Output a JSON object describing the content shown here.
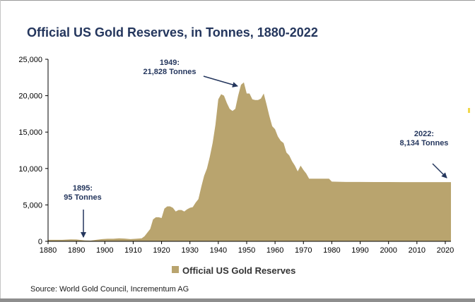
{
  "chart_data": {
    "type": "area",
    "title": "Official US Gold Reserves, in Tonnes, 1880-2022",
    "xlabel": "",
    "ylabel": "",
    "xlim": [
      1880,
      2022
    ],
    "ylim": [
      0,
      25000
    ],
    "x_ticks": [
      1880,
      1890,
      1900,
      1910,
      1920,
      1930,
      1940,
      1950,
      1960,
      1970,
      1980,
      1990,
      2000,
      2010,
      2020
    ],
    "y_ticks": [
      0,
      5000,
      10000,
      15000,
      20000,
      25000
    ],
    "y_tick_labels": [
      "0",
      "5,000",
      "10,000",
      "15,000",
      "20,000",
      "25,000"
    ],
    "grid": false,
    "legend_position": "bottom-center",
    "series": [
      {
        "name": "Official US Gold Reserves",
        "color": "#b9a46e",
        "x": [
          1880,
          1885,
          1888,
          1890,
          1893,
          1895,
          1897,
          1899,
          1901,
          1903,
          1905,
          1907,
          1909,
          1911,
          1913,
          1914,
          1915,
          1916,
          1917,
          1918,
          1919,
          1920,
          1921,
          1922,
          1923,
          1924,
          1925,
          1926,
          1927,
          1928,
          1929,
          1930,
          1931,
          1932,
          1933,
          1934,
          1935,
          1936,
          1937,
          1938,
          1939,
          1940,
          1941,
          1942,
          1943,
          1944,
          1945,
          1946,
          1947,
          1948,
          1949,
          1950,
          1951,
          1952,
          1953,
          1954,
          1955,
          1956,
          1957,
          1958,
          1959,
          1960,
          1961,
          1962,
          1963,
          1964,
          1965,
          1966,
          1967,
          1968,
          1969,
          1970,
          1971,
          1972,
          1975,
          1978,
          1979,
          1980,
          1985,
          1990,
          1995,
          2000,
          2005,
          2010,
          2015,
          2022
        ],
        "values": [
          200,
          200,
          270,
          250,
          130,
          95,
          200,
          300,
          350,
          350,
          420,
          380,
          300,
          350,
          420,
          700,
          1200,
          1700,
          3000,
          3300,
          3300,
          3200,
          4500,
          4800,
          4800,
          4600,
          4100,
          4300,
          4300,
          4100,
          4400,
          4600,
          4700,
          5300,
          5800,
          7500,
          9000,
          10000,
          11600,
          13500,
          16000,
          19500,
          20200,
          20000,
          19000,
          18200,
          17900,
          18200,
          20000,
          21500,
          21828,
          20300,
          20300,
          19500,
          19400,
          19400,
          19600,
          20300,
          18800,
          17200,
          15800,
          15400,
          14400,
          13800,
          13500,
          12200,
          11800,
          11000,
          10400,
          9600,
          10400,
          9800,
          9300,
          8600,
          8600,
          8600,
          8600,
          8200,
          8150,
          8150,
          8140,
          8140,
          8134,
          8134,
          8134,
          8134
        ]
      }
    ],
    "annotations": [
      {
        "lines": [
          "1949:",
          "21,828 Tonnes"
        ],
        "year": 1949,
        "value": 21828
      },
      {
        "lines": [
          "2022:",
          "8,134 Tonnes"
        ],
        "year": 2022,
        "value": 8134
      },
      {
        "lines": [
          "1895:",
          "95 Tonnes"
        ],
        "year": 1895,
        "value": 95
      }
    ],
    "source": "Source: World Gold Council, Incrementum AG"
  }
}
